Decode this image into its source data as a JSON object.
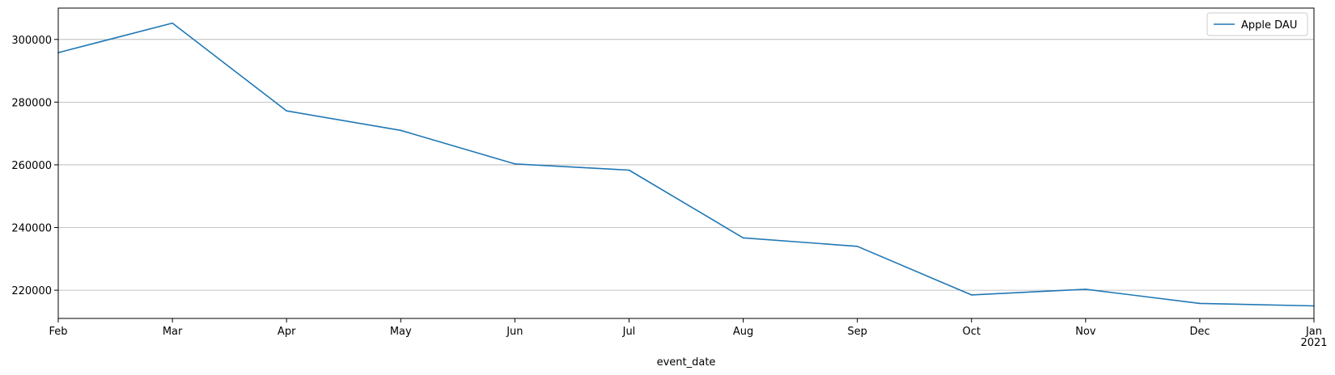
{
  "chart_data": {
    "type": "line",
    "title": "",
    "xlabel": "event_date",
    "ylabel": "",
    "x": [
      "Feb",
      "Mar",
      "Apr",
      "May",
      "Jun",
      "Jul",
      "Aug",
      "Sep",
      "Oct",
      "Nov",
      "Dec",
      "Jan"
    ],
    "x_tick_labels": [
      "Feb",
      "Mar",
      "Apr",
      "May",
      "Jun",
      "Jul",
      "Aug",
      "Sep",
      "Oct",
      "Nov",
      "Dec",
      "Jan"
    ],
    "x_year_label": "2021",
    "series": [
      {
        "name": "Apple DAU",
        "color": "#1f77b4",
        "values": [
          295800,
          305200,
          277200,
          271000,
          260300,
          258300,
          236700,
          234000,
          218500,
          220300,
          215800,
          215000
        ]
      }
    ],
    "ylim": [
      211000,
      310000
    ],
    "y_ticks": [
      220000,
      240000,
      260000,
      280000,
      300000
    ],
    "y_tick_labels": [
      "220000",
      "240000",
      "260000",
      "280000",
      "300000"
    ],
    "grid": "horizontal",
    "legend_position": "top-right"
  }
}
